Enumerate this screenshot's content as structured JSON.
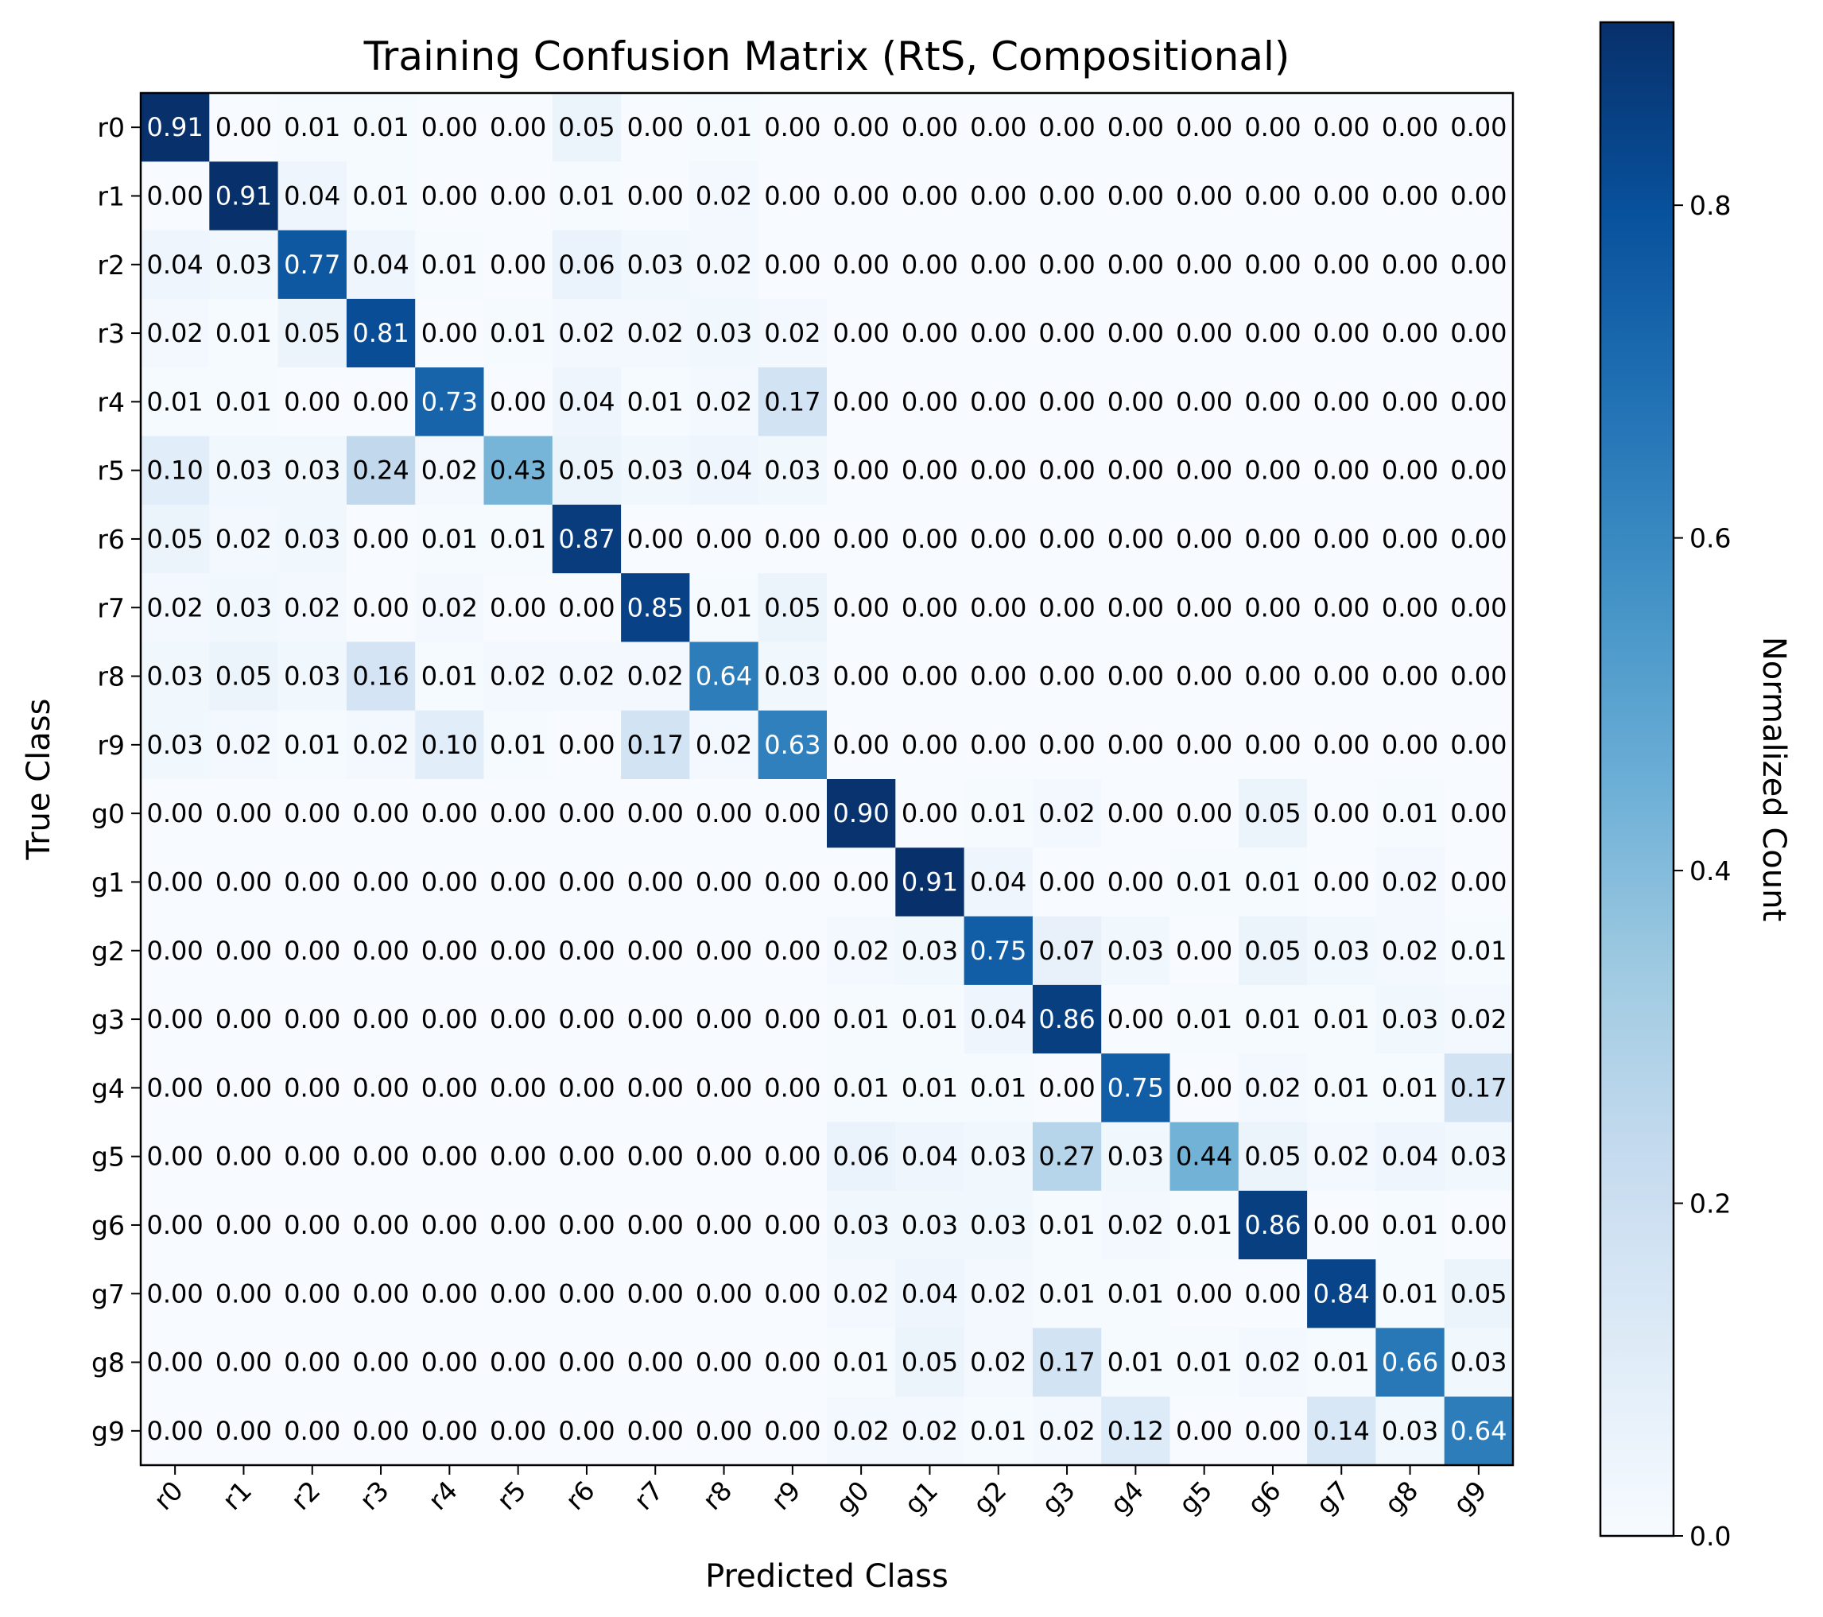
{
  "chart_data": {
    "type": "heatmap",
    "title": "Training Confusion Matrix (RtS, Compositional)",
    "xlabel": "Predicted Class",
    "ylabel": "True Class",
    "x_categories": [
      "r0",
      "r1",
      "r2",
      "r3",
      "r4",
      "r5",
      "r6",
      "r7",
      "r8",
      "r9",
      "g0",
      "g1",
      "g2",
      "g3",
      "g4",
      "g5",
      "g6",
      "g7",
      "g8",
      "g9"
    ],
    "y_categories": [
      "r0",
      "r1",
      "r2",
      "r3",
      "r4",
      "r5",
      "r6",
      "r7",
      "r8",
      "r9",
      "g0",
      "g1",
      "g2",
      "g3",
      "g4",
      "g5",
      "g6",
      "g7",
      "g8",
      "g9"
    ],
    "values": [
      [
        0.91,
        0.0,
        0.01,
        0.01,
        0.0,
        0.0,
        0.05,
        0.0,
        0.01,
        0.0,
        0.0,
        0.0,
        0.0,
        0.0,
        0.0,
        0.0,
        0.0,
        0.0,
        0.0,
        0.0
      ],
      [
        0.0,
        0.91,
        0.04,
        0.01,
        0.0,
        0.0,
        0.01,
        0.0,
        0.02,
        0.0,
        0.0,
        0.0,
        0.0,
        0.0,
        0.0,
        0.0,
        0.0,
        0.0,
        0.0,
        0.0
      ],
      [
        0.04,
        0.03,
        0.77,
        0.04,
        0.01,
        0.0,
        0.06,
        0.03,
        0.02,
        0.0,
        0.0,
        0.0,
        0.0,
        0.0,
        0.0,
        0.0,
        0.0,
        0.0,
        0.0,
        0.0
      ],
      [
        0.02,
        0.01,
        0.05,
        0.81,
        0.0,
        0.01,
        0.02,
        0.02,
        0.03,
        0.02,
        0.0,
        0.0,
        0.0,
        0.0,
        0.0,
        0.0,
        0.0,
        0.0,
        0.0,
        0.0
      ],
      [
        0.01,
        0.01,
        0.0,
        0.0,
        0.73,
        0.0,
        0.04,
        0.01,
        0.02,
        0.17,
        0.0,
        0.0,
        0.0,
        0.0,
        0.0,
        0.0,
        0.0,
        0.0,
        0.0,
        0.0
      ],
      [
        0.1,
        0.03,
        0.03,
        0.24,
        0.02,
        0.43,
        0.05,
        0.03,
        0.04,
        0.03,
        0.0,
        0.0,
        0.0,
        0.0,
        0.0,
        0.0,
        0.0,
        0.0,
        0.0,
        0.0
      ],
      [
        0.05,
        0.02,
        0.03,
        0.0,
        0.01,
        0.01,
        0.87,
        0.0,
        0.0,
        0.0,
        0.0,
        0.0,
        0.0,
        0.0,
        0.0,
        0.0,
        0.0,
        0.0,
        0.0,
        0.0
      ],
      [
        0.02,
        0.03,
        0.02,
        0.0,
        0.02,
        0.0,
        0.0,
        0.85,
        0.01,
        0.05,
        0.0,
        0.0,
        0.0,
        0.0,
        0.0,
        0.0,
        0.0,
        0.0,
        0.0,
        0.0
      ],
      [
        0.03,
        0.05,
        0.03,
        0.16,
        0.01,
        0.02,
        0.02,
        0.02,
        0.64,
        0.03,
        0.0,
        0.0,
        0.0,
        0.0,
        0.0,
        0.0,
        0.0,
        0.0,
        0.0,
        0.0
      ],
      [
        0.03,
        0.02,
        0.01,
        0.02,
        0.1,
        0.01,
        0.0,
        0.17,
        0.02,
        0.63,
        0.0,
        0.0,
        0.0,
        0.0,
        0.0,
        0.0,
        0.0,
        0.0,
        0.0,
        0.0
      ],
      [
        0.0,
        0.0,
        0.0,
        0.0,
        0.0,
        0.0,
        0.0,
        0.0,
        0.0,
        0.0,
        0.9,
        0.0,
        0.01,
        0.02,
        0.0,
        0.0,
        0.05,
        0.0,
        0.01,
        0.0
      ],
      [
        0.0,
        0.0,
        0.0,
        0.0,
        0.0,
        0.0,
        0.0,
        0.0,
        0.0,
        0.0,
        0.0,
        0.91,
        0.04,
        0.0,
        0.0,
        0.01,
        0.01,
        0.0,
        0.02,
        0.0
      ],
      [
        0.0,
        0.0,
        0.0,
        0.0,
        0.0,
        0.0,
        0.0,
        0.0,
        0.0,
        0.0,
        0.02,
        0.03,
        0.75,
        0.07,
        0.03,
        0.0,
        0.05,
        0.03,
        0.02,
        0.01
      ],
      [
        0.0,
        0.0,
        0.0,
        0.0,
        0.0,
        0.0,
        0.0,
        0.0,
        0.0,
        0.0,
        0.01,
        0.01,
        0.04,
        0.86,
        0.0,
        0.01,
        0.01,
        0.01,
        0.03,
        0.02
      ],
      [
        0.0,
        0.0,
        0.0,
        0.0,
        0.0,
        0.0,
        0.0,
        0.0,
        0.0,
        0.0,
        0.01,
        0.01,
        0.01,
        0.0,
        0.75,
        0.0,
        0.02,
        0.01,
        0.01,
        0.17
      ],
      [
        0.0,
        0.0,
        0.0,
        0.0,
        0.0,
        0.0,
        0.0,
        0.0,
        0.0,
        0.0,
        0.06,
        0.04,
        0.03,
        0.27,
        0.03,
        0.44,
        0.05,
        0.02,
        0.04,
        0.03
      ],
      [
        0.0,
        0.0,
        0.0,
        0.0,
        0.0,
        0.0,
        0.0,
        0.0,
        0.0,
        0.0,
        0.03,
        0.03,
        0.03,
        0.01,
        0.02,
        0.01,
        0.86,
        0.0,
        0.01,
        0.0
      ],
      [
        0.0,
        0.0,
        0.0,
        0.0,
        0.0,
        0.0,
        0.0,
        0.0,
        0.0,
        0.0,
        0.02,
        0.04,
        0.02,
        0.01,
        0.01,
        0.0,
        0.0,
        0.84,
        0.01,
        0.05
      ],
      [
        0.0,
        0.0,
        0.0,
        0.0,
        0.0,
        0.0,
        0.0,
        0.0,
        0.0,
        0.0,
        0.01,
        0.05,
        0.02,
        0.17,
        0.01,
        0.01,
        0.02,
        0.01,
        0.66,
        0.03
      ],
      [
        0.0,
        0.0,
        0.0,
        0.0,
        0.0,
        0.0,
        0.0,
        0.0,
        0.0,
        0.0,
        0.02,
        0.02,
        0.01,
        0.02,
        0.12,
        0.0,
        0.0,
        0.14,
        0.03,
        0.64
      ]
    ],
    "colorbar": {
      "label": "Normalized Count",
      "range": [
        0,
        0.91
      ],
      "ticks": [
        0.0,
        0.2,
        0.4,
        0.6,
        0.8
      ],
      "tick_labels": [
        "0.0",
        "0.2",
        "0.4",
        "0.6",
        "0.8"
      ],
      "colormap": "Blues",
      "low_color": "#f7fbff",
      "high_color": "#08306b"
    },
    "grid": false
  }
}
